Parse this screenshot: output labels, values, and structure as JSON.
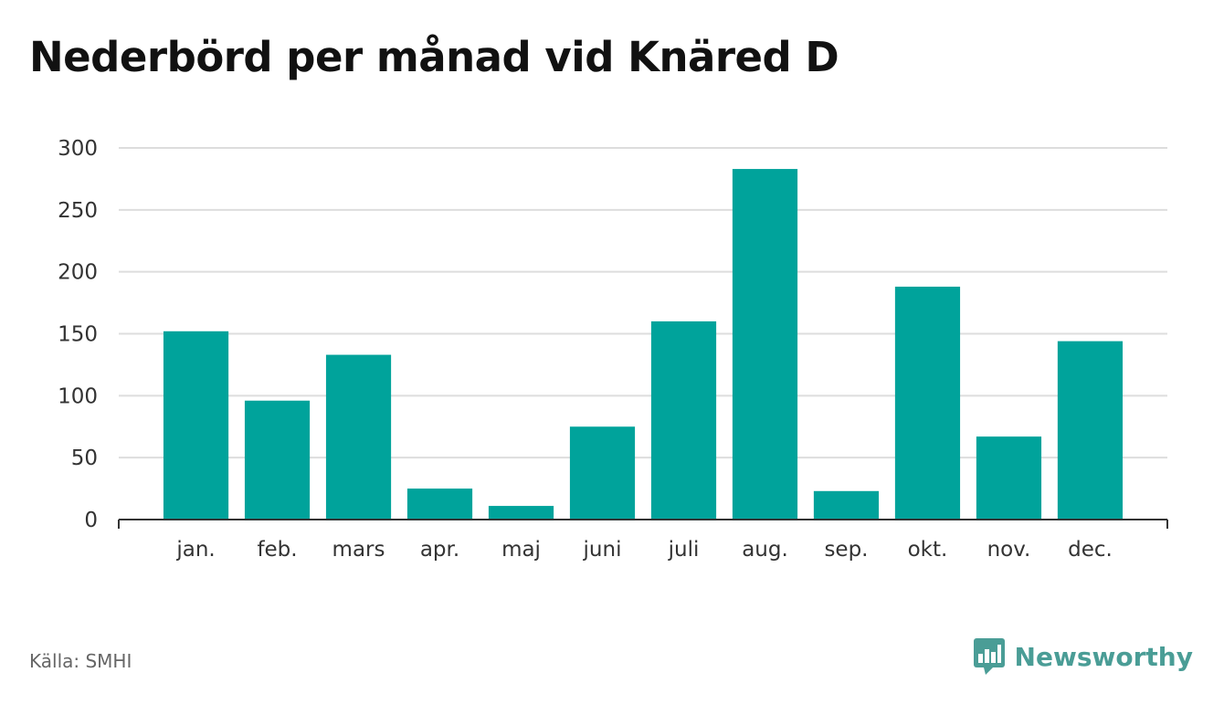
{
  "title": "Nederbörd per månad vid Knäred D",
  "source": "Källa: SMHI",
  "brand": {
    "name": "Newsworthy",
    "icon": "bar-chart-speech-bubble-icon",
    "color": "#4a9d96"
  },
  "colors": {
    "bar": "#00a39b",
    "grid": "#dddddd",
    "axis": "#333333"
  },
  "chart_data": {
    "type": "bar",
    "categories": [
      "jan.",
      "feb.",
      "mars",
      "apr.",
      "maj",
      "juni",
      "juli",
      "aug.",
      "sep.",
      "okt.",
      "nov.",
      "dec."
    ],
    "values": [
      152,
      96,
      133,
      25,
      11,
      75,
      160,
      283,
      23,
      188,
      67,
      144
    ],
    "ylim": [
      0,
      300
    ],
    "yticks": [
      0,
      50,
      100,
      150,
      200,
      250,
      300
    ],
    "grid": true,
    "legend": "none"
  }
}
